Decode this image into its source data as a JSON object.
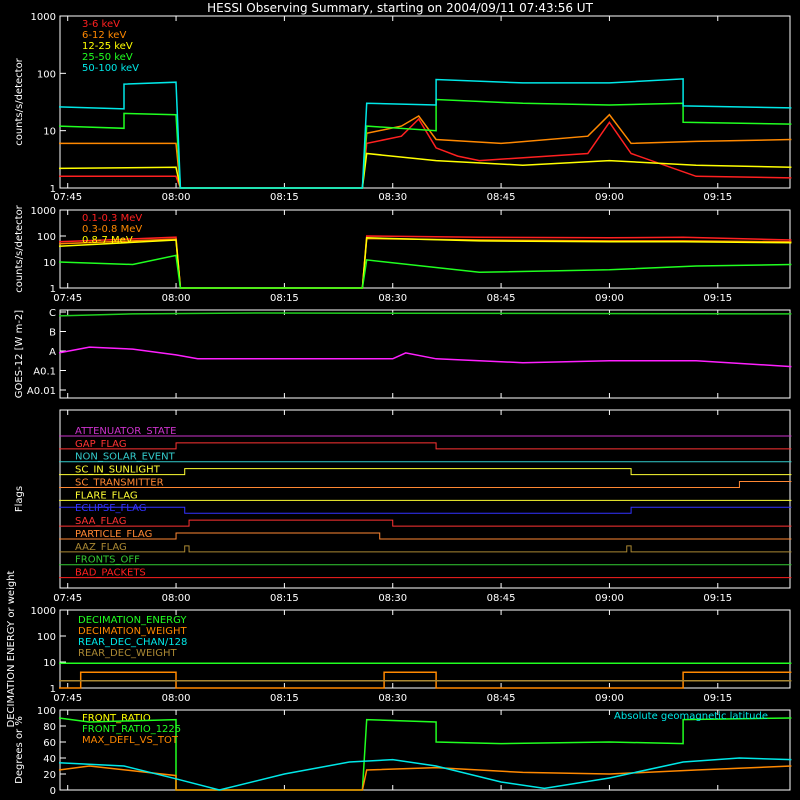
{
  "title": "HESSI Observing Summary, starting on 2004/09/11 07:43:56 UT",
  "time_ticks": [
    "07:45",
    "08:00",
    "08:15",
    "08:30",
    "08:45",
    "09:00",
    "09:15"
  ],
  "chart_data": [
    {
      "type": "line",
      "name": "lowE",
      "ylabel": "counts/s/detector",
      "yscale": "log",
      "ylim": [
        1,
        1000
      ],
      "ytick_labels": [
        "1",
        "10",
        "100",
        "1000"
      ],
      "xlim": [
        "07:43:56",
        "09:25:00"
      ],
      "series": [
        {
          "name": "3-6 keV",
          "color": "#ff2020",
          "values": [
            [
              7.73,
              1.6
            ],
            [
              8.0,
              1.6
            ],
            [
              8.01,
              1
            ],
            [
              8.43,
              1
            ],
            [
              8.44,
              6
            ],
            [
              8.52,
              8
            ],
            [
              8.56,
              16
            ],
            [
              8.6,
              5
            ],
            [
              8.65,
              3.6
            ],
            [
              8.7,
              3
            ],
            [
              8.95,
              4
            ],
            [
              9.0,
              14
            ],
            [
              9.05,
              4
            ],
            [
              9.2,
              1.6
            ],
            [
              9.42,
              1.5
            ]
          ]
        },
        {
          "name": "6-12 keV",
          "color": "#ff8800",
          "values": [
            [
              7.73,
              6
            ],
            [
              8.0,
              6
            ],
            [
              8.01,
              1
            ],
            [
              8.43,
              1
            ],
            [
              8.44,
              9
            ],
            [
              8.52,
              12
            ],
            [
              8.56,
              18
            ],
            [
              8.6,
              7
            ],
            [
              8.75,
              6
            ],
            [
              8.95,
              8
            ],
            [
              9.0,
              19
            ],
            [
              9.05,
              6
            ],
            [
              9.2,
              6.5
            ],
            [
              9.42,
              7
            ]
          ]
        },
        {
          "name": "12-25 keV",
          "color": "#ffff00",
          "values": [
            [
              7.73,
              2.2
            ],
            [
              8.0,
              2.3
            ],
            [
              8.01,
              1
            ],
            [
              8.43,
              1
            ],
            [
              8.44,
              4
            ],
            [
              8.6,
              3
            ],
            [
              8.8,
              2.5
            ],
            [
              9.0,
              3
            ],
            [
              9.2,
              2.5
            ],
            [
              9.42,
              2.3
            ]
          ]
        },
        {
          "name": "25-50 keV",
          "color": "#20ff20",
          "values": [
            [
              7.73,
              12
            ],
            [
              7.88,
              11
            ],
            [
              7.88,
              20
            ],
            [
              8.0,
              19
            ],
            [
              8.01,
              1
            ],
            [
              8.43,
              1
            ],
            [
              8.44,
              12
            ],
            [
              8.6,
              10
            ],
            [
              8.6,
              35
            ],
            [
              8.8,
              30
            ],
            [
              9.0,
              28
            ],
            [
              9.17,
              30
            ],
            [
              9.17,
              14
            ],
            [
              9.42,
              13
            ]
          ]
        },
        {
          "name": "50-100 keV",
          "color": "#00e8e8",
          "values": [
            [
              7.73,
              26
            ],
            [
              7.88,
              24
            ],
            [
              7.88,
              65
            ],
            [
              8.0,
              70
            ],
            [
              8.01,
              1
            ],
            [
              8.43,
              1
            ],
            [
              8.44,
              30
            ],
            [
              8.6,
              28
            ],
            [
              8.6,
              78
            ],
            [
              8.8,
              68
            ],
            [
              9.0,
              68
            ],
            [
              9.17,
              80
            ],
            [
              9.17,
              27
            ],
            [
              9.42,
              25
            ]
          ]
        }
      ]
    },
    {
      "type": "line",
      "name": "highE",
      "ylabel": "counts/s/detector",
      "yscale": "log",
      "ylim": [
        1,
        1000
      ],
      "ytick_labels": [
        "1",
        "10",
        "100",
        "1000"
      ],
      "series": [
        {
          "name": "0.1-0.3 MeV",
          "color": "#ff2020",
          "values": [
            [
              7.73,
              60
            ],
            [
              8.0,
              90
            ],
            [
              8.01,
              1
            ],
            [
              8.43,
              1
            ],
            [
              8.44,
              100
            ],
            [
              8.7,
              90
            ],
            [
              9.0,
              85
            ],
            [
              9.17,
              90
            ],
            [
              9.42,
              70
            ]
          ]
        },
        {
          "name": "0.3-0.8 MeV",
          "color": "#ff8800",
          "values": [
            [
              7.73,
              50
            ],
            [
              8.0,
              75
            ],
            [
              8.01,
              1
            ],
            [
              8.43,
              1
            ],
            [
              8.44,
              80
            ],
            [
              8.7,
              70
            ],
            [
              9.0,
              65
            ],
            [
              9.17,
              65
            ],
            [
              9.42,
              60
            ]
          ]
        },
        {
          "name": "0.8-7 MeV",
          "color": "#ffff00",
          "values": [
            [
              7.73,
              40
            ],
            [
              8.0,
              70
            ],
            [
              8.01,
              1
            ],
            [
              8.43,
              1
            ],
            [
              8.44,
              85
            ],
            [
              8.7,
              65
            ],
            [
              9.0,
              60
            ],
            [
              9.17,
              60
            ],
            [
              9.42,
              55
            ]
          ]
        },
        {
          "name": "",
          "color": "#20ff20",
          "values": [
            [
              7.73,
              10
            ],
            [
              7.9,
              8
            ],
            [
              8.0,
              18
            ],
            [
              8.01,
              1
            ],
            [
              8.43,
              1
            ],
            [
              8.44,
              12
            ],
            [
              8.7,
              4
            ],
            [
              9.0,
              5
            ],
            [
              9.2,
              7
            ],
            [
              9.42,
              8
            ]
          ]
        }
      ]
    },
    {
      "type": "line",
      "name": "goes",
      "ylabel": "GOES-12 [W m-2]",
      "ytick_labels": [
        "A0.01",
        "A0.1",
        "A",
        "B",
        "C"
      ],
      "series": [
        {
          "name": "",
          "color": "#20d020",
          "values": [
            [
              7.73,
              3.8
            ],
            [
              7.9,
              3.9
            ],
            [
              8.2,
              3.95
            ],
            [
              9.42,
              3.9
            ]
          ]
        },
        {
          "name": "",
          "color": "#ff20ff",
          "values": [
            [
              7.73,
              1.9
            ],
            [
              7.8,
              2.2
            ],
            [
              7.9,
              2.1
            ],
            [
              8.0,
              1.8
            ],
            [
              8.05,
              1.6
            ],
            [
              8.5,
              1.6
            ],
            [
              8.53,
              1.9
            ],
            [
              8.6,
              1.6
            ],
            [
              8.8,
              1.4
            ],
            [
              9.0,
              1.5
            ],
            [
              9.2,
              1.5
            ],
            [
              9.42,
              1.2
            ]
          ]
        }
      ]
    },
    {
      "type": "table",
      "name": "flags",
      "ylabel": "Flags",
      "series": [
        {
          "name": "ATTENUATOR_STATE",
          "color": "#cc33cc",
          "steps": [
            [
              7.73,
              0
            ],
            [
              9.42,
              0
            ]
          ]
        },
        {
          "name": "GAP_FLAG",
          "color": "#ff3333",
          "steps": [
            [
              7.73,
              0
            ],
            [
              8.0,
              1
            ],
            [
              8.6,
              0
            ],
            [
              9.42,
              0
            ]
          ]
        },
        {
          "name": "NON_SOLAR_EVENT",
          "color": "#33cccc",
          "steps": [
            [
              7.73,
              0
            ],
            [
              9.42,
              0
            ]
          ]
        },
        {
          "name": "SC_IN_SUNLIGHT",
          "color": "#ffff33",
          "steps": [
            [
              7.73,
              0
            ],
            [
              8.02,
              1
            ],
            [
              9.05,
              0
            ],
            [
              9.42,
              0
            ]
          ]
        },
        {
          "name": "SC_TRANSMITTER",
          "color": "#ff8833",
          "steps": [
            [
              7.73,
              0
            ],
            [
              9.3,
              1
            ],
            [
              9.42,
              1
            ]
          ]
        },
        {
          "name": "FLARE_FLAG",
          "color": "#ffff33",
          "steps": [
            [
              7.73,
              0
            ],
            [
              9.42,
              0
            ]
          ]
        },
        {
          "name": "ECLIPSE_FLAG",
          "color": "#3333ff",
          "steps": [
            [
              7.73,
              1
            ],
            [
              8.02,
              0
            ],
            [
              9.05,
              1
            ],
            [
              9.42,
              1
            ]
          ]
        },
        {
          "name": "SAA_FLAG",
          "color": "#ff3333",
          "steps": [
            [
              7.73,
              0
            ],
            [
              8.03,
              1
            ],
            [
              8.5,
              0
            ],
            [
              9.42,
              0
            ]
          ]
        },
        {
          "name": "PARTICLE_FLAG",
          "color": "#ff8833",
          "steps": [
            [
              7.73,
              0
            ],
            [
              8.0,
              1
            ],
            [
              8.47,
              0
            ],
            [
              9.42,
              0
            ]
          ]
        },
        {
          "name": "AAZ_FLAG",
          "color": "#aa8833",
          "steps": [
            [
              7.73,
              0
            ],
            [
              8.02,
              1
            ],
            [
              8.03,
              0
            ],
            [
              9.04,
              1
            ],
            [
              9.05,
              0
            ],
            [
              9.42,
              0
            ]
          ]
        },
        {
          "name": "FRONTS_OFF",
          "color": "#33cc33",
          "steps": [
            [
              7.73,
              0
            ],
            [
              9.42,
              0
            ]
          ]
        },
        {
          "name": "BAD_PACKETS",
          "color": "#ff2020",
          "steps": [
            [
              7.73,
              0
            ],
            [
              9.42,
              0
            ]
          ]
        }
      ]
    },
    {
      "type": "line",
      "name": "decim",
      "ylabel": "DECIMATION ENERGY or weight",
      "yscale": "log",
      "ylim": [
        1,
        1000
      ],
      "ytick_labels": [
        "1",
        "10",
        "100",
        "1000"
      ],
      "series": [
        {
          "name": "DECIMATION_ENERGY",
          "color": "#20ff20",
          "values": [
            [
              7.73,
              9
            ],
            [
              9.42,
              9
            ]
          ]
        },
        {
          "name": "DECIMATION_WEIGHT",
          "color": "#ff8800",
          "values": [
            [
              7.73,
              1
            ],
            [
              7.78,
              1
            ],
            [
              7.78,
              4
            ],
            [
              8.0,
              4
            ],
            [
              8.0,
              1
            ],
            [
              8.48,
              1
            ],
            [
              8.48,
              4
            ],
            [
              8.6,
              4
            ],
            [
              8.6,
              1
            ],
            [
              9.17,
              1
            ],
            [
              9.17,
              4
            ],
            [
              9.42,
              4
            ]
          ]
        },
        {
          "name": "REAR_DEC_CHAN/128",
          "color": "#00e8e8",
          "values": []
        },
        {
          "name": "REAR_DEC_WEIGHT",
          "color": "#aa8833",
          "values": [
            [
              7.73,
              1.9
            ],
            [
              9.42,
              1.9
            ]
          ]
        }
      ]
    },
    {
      "type": "line",
      "name": "ratio",
      "ylabel": "Degrees or %",
      "ylim": [
        0,
        100
      ],
      "ytick_labels": [
        "0",
        "20",
        "40",
        "60",
        "80",
        "100"
      ],
      "annotation": "Absolute geomagnetic latitude",
      "series": [
        {
          "name": "FRONT_RATIO",
          "color": "#ffff00",
          "values": []
        },
        {
          "name": "FRONT_RATIO_1225",
          "color": "#20ff20",
          "values": [
            [
              7.73,
              90
            ],
            [
              7.8,
              85
            ],
            [
              8.0,
              88
            ],
            [
              8.0,
              0
            ],
            [
              8.43,
              0
            ],
            [
              8.44,
              88
            ],
            [
              8.6,
              85
            ],
            [
              8.6,
              60
            ],
            [
              8.75,
              58
            ],
            [
              9.0,
              60
            ],
            [
              9.17,
              58
            ],
            [
              9.17,
              88
            ],
            [
              9.42,
              90
            ]
          ]
        },
        {
          "name": "MAX_DEFL_VS_TOT",
          "color": "#ff8800",
          "values": [
            [
              7.73,
              25
            ],
            [
              7.8,
              30
            ],
            [
              8.0,
              18
            ],
            [
              8.0,
              0
            ],
            [
              8.43,
              0
            ],
            [
              8.44,
              25
            ],
            [
              8.6,
              28
            ],
            [
              8.8,
              22
            ],
            [
              9.0,
              20
            ],
            [
              9.2,
              25
            ],
            [
              9.42,
              30
            ]
          ]
        },
        {
          "name": "Absolute geomagnetic latitude",
          "color": "#00e8e8",
          "values": [
            [
              7.73,
              34
            ],
            [
              7.88,
              30
            ],
            [
              8.0,
              14
            ],
            [
              8.1,
              0
            ],
            [
              8.25,
              20
            ],
            [
              8.4,
              35
            ],
            [
              8.5,
              38
            ],
            [
              8.6,
              30
            ],
            [
              8.75,
              10
            ],
            [
              8.85,
              2
            ],
            [
              9.0,
              15
            ],
            [
              9.17,
              35
            ],
            [
              9.3,
              40
            ],
            [
              9.42,
              38
            ]
          ]
        }
      ]
    }
  ]
}
